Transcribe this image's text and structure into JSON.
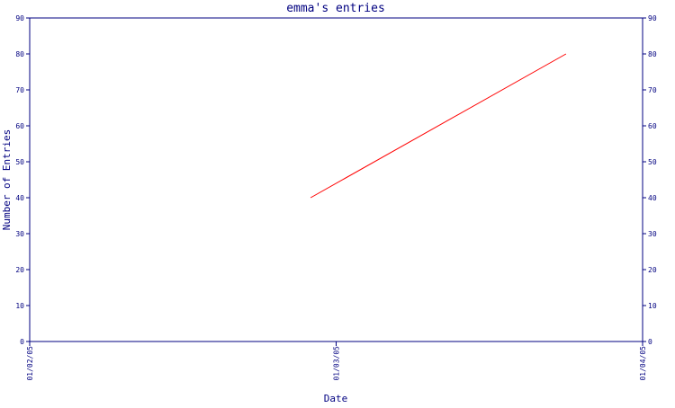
{
  "chart_data": {
    "type": "line",
    "title": "emma's entries",
    "xlabel": "Date",
    "ylabel": "Number of Entries",
    "x_ticks": [
      "01/02/05",
      "01/03/05",
      "01/04/05"
    ],
    "x_range": [
      "01/02/05",
      "01/04/05"
    ],
    "y_ticks": [
      "0",
      "10",
      "20",
      "30",
      "40",
      "50",
      "60",
      "70",
      "80",
      "90"
    ],
    "ylim": [
      0,
      90
    ],
    "secondary_y_axis": true,
    "grid": false,
    "legend": "none",
    "series": [
      {
        "color": "#ff0000",
        "points": [
          {
            "x": "01/02/05 22:00",
            "y": 40
          },
          {
            "x": "01/03/05 18:00",
            "y": 80
          }
        ]
      }
    ],
    "colors": {
      "title": "#000080",
      "axis": "#000080",
      "text": "#000080"
    }
  }
}
